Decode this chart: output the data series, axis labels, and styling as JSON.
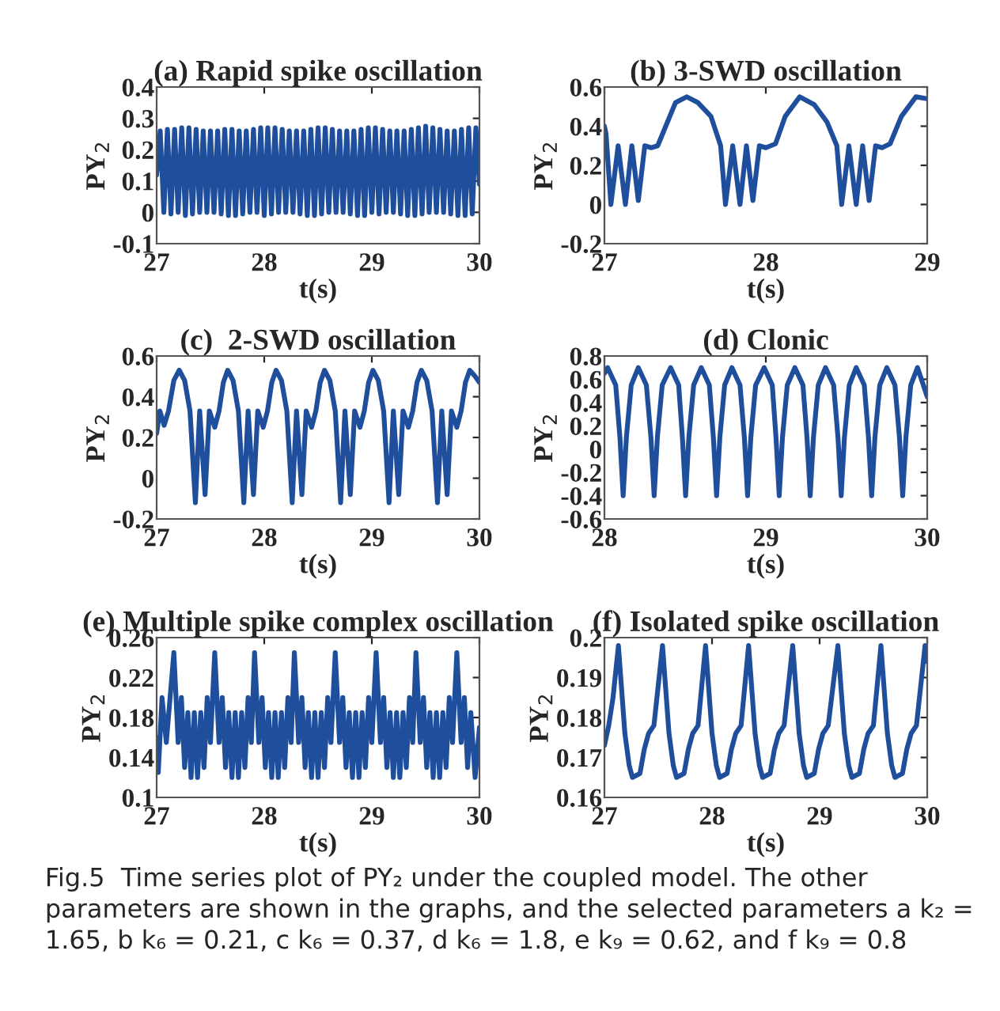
{
  "chart_data": [
    {
      "type": "line",
      "title": "(a) Rapid spike oscillation",
      "xlabel": "t(s)",
      "ylabel": "PY$_{2}$",
      "xlim": [
        27,
        30
      ],
      "ylim": [
        -0.1,
        0.4
      ],
      "xticks": [
        27,
        28,
        29,
        30
      ],
      "yticks": [
        -0.1,
        0,
        0.1,
        0.2,
        0.3,
        0.4
      ],
      "series": [
        {
          "color": "#1f4e9c",
          "x": [
            27.0,
            27.033,
            27.067,
            27.1,
            27.133,
            27.167,
            27.2,
            27.233,
            27.267,
            27.3,
            27.333,
            27.367,
            27.4,
            27.433,
            27.467,
            27.5,
            27.533,
            27.567,
            27.6,
            27.633,
            27.667,
            27.7,
            27.733,
            27.767,
            27.8,
            27.833,
            27.867,
            27.9,
            27.933,
            27.967,
            28.0,
            28.033,
            28.067,
            28.1,
            28.133,
            28.167,
            28.2,
            28.233,
            28.267,
            28.3,
            28.333,
            28.367,
            28.4,
            28.433,
            28.467,
            28.5,
            28.533,
            28.567,
            28.6,
            28.633,
            28.667,
            28.7,
            28.733,
            28.767,
            28.8,
            28.833,
            28.867,
            28.9,
            28.933,
            28.967,
            29.0,
            29.033,
            29.067,
            29.1,
            29.133,
            29.167,
            29.2,
            29.233,
            29.267,
            29.3,
            29.333,
            29.367,
            29.4,
            29.433,
            29.467,
            29.5,
            29.533,
            29.567,
            29.6,
            29.633,
            29.667,
            29.7,
            29.733,
            29.767,
            29.8,
            29.833,
            29.867,
            29.9,
            29.933,
            29.967,
            30.0
          ],
          "values": [
            0.12,
            0.26,
            0,
            0.265,
            -0.005,
            0.265,
            0,
            0.27,
            -0.01,
            0.27,
            -0.005,
            0.265,
            0,
            0.26,
            0,
            0.26,
            0,
            0.26,
            -0.005,
            0.265,
            -0.01,
            0.265,
            -0.01,
            0.26,
            -0.005,
            0.26,
            0,
            0.265,
            0,
            0.27,
            -0.01,
            0.27,
            -0.005,
            0.27,
            0,
            0.265,
            0,
            0.26,
            0,
            0.26,
            -0.005,
            0.26,
            -0.01,
            0.265,
            -0.01,
            0.27,
            -0.005,
            0.27,
            0,
            0.265,
            0,
            0.26,
            0,
            0.26,
            -0.005,
            0.26,
            -0.01,
            0.265,
            -0.01,
            0.27,
            0,
            0.27,
            -0.005,
            0.265,
            0,
            0.26,
            0,
            0.26,
            -0.005,
            0.26,
            -0.01,
            0.265,
            -0.01,
            0.27,
            -0.005,
            0.275,
            0,
            0.27,
            0,
            0.265,
            0,
            0.26,
            -0.005,
            0.26,
            -0.01,
            0.265,
            -0.01,
            0.27,
            -0.005,
            0.27,
            0.09
          ]
        }
      ]
    },
    {
      "type": "line",
      "title": "(b) 3-SWD oscillation",
      "xlabel": "t(s)",
      "ylabel": "PY$_{2}$",
      "xlim": [
        27,
        29
      ],
      "ylim": [
        -0.2,
        0.6
      ],
      "xticks": [
        27,
        28,
        29
      ],
      "yticks": [
        -0.2,
        0,
        0.2,
        0.4,
        0.6
      ],
      "series": [
        {
          "color": "#1f4e9c",
          "x": [
            27.0,
            27.01,
            27.04,
            27.085,
            27.13,
            27.17,
            27.21,
            27.25,
            27.29,
            27.33,
            27.38,
            27.44,
            27.51,
            27.58,
            27.66,
            27.72,
            27.75,
            27.795,
            27.84,
            27.88,
            27.92,
            27.96,
            28.0,
            28.06,
            28.12,
            28.21,
            28.3,
            28.38,
            28.44,
            28.47,
            28.515,
            28.56,
            28.6,
            28.64,
            28.68,
            28.72,
            28.77,
            28.84,
            28.93,
            29.0
          ],
          "values": [
            0.4,
            0.36,
            0.0,
            0.3,
            0.0,
            0.3,
            0.02,
            0.3,
            0.29,
            0.3,
            0.4,
            0.52,
            0.55,
            0.52,
            0.45,
            0.3,
            0.0,
            0.3,
            0.0,
            0.3,
            0.02,
            0.3,
            0.29,
            0.31,
            0.45,
            0.55,
            0.51,
            0.42,
            0.3,
            0.0,
            0.3,
            0.0,
            0.3,
            0.02,
            0.3,
            0.29,
            0.31,
            0.45,
            0.55,
            0.54
          ]
        }
      ]
    },
    {
      "type": "line",
      "title": "(c)  2-SWD oscillation",
      "xlabel": "t(s)",
      "ylabel": "PY$_{2}$",
      "xlim": [
        27,
        30
      ],
      "ylim": [
        -0.2,
        0.6
      ],
      "xticks": [
        27,
        28,
        29,
        30
      ],
      "yticks": [
        -0.2,
        0,
        0.2,
        0.4,
        0.6
      ],
      "series": [
        {
          "color": "#1f4e9c",
          "x": [
            27.0,
            27.03,
            27.07,
            27.11,
            27.16,
            27.21,
            27.26,
            27.31,
            27.36,
            27.4,
            27.45,
            27.49,
            27.54,
            27.58,
            27.62,
            27.66,
            27.71,
            27.76,
            27.81,
            27.85,
            27.9,
            27.94,
            27.99,
            28.03,
            28.07,
            28.11,
            28.16,
            28.21,
            28.26,
            28.3,
            28.35,
            28.39,
            28.44,
            28.48,
            28.52,
            28.56,
            28.61,
            28.66,
            28.71,
            28.75,
            28.8,
            28.84,
            28.89,
            28.93,
            28.97,
            29.01,
            29.06,
            29.11,
            29.16,
            29.2,
            29.25,
            29.29,
            29.34,
            29.38,
            29.42,
            29.46,
            29.51,
            29.56,
            29.61,
            29.65,
            29.7,
            29.74,
            29.79,
            29.83,
            29.87,
            29.91,
            29.96,
            30.0
          ],
          "values": [
            0.22,
            0.33,
            0.26,
            0.33,
            0.48,
            0.53,
            0.48,
            0.33,
            -0.12,
            0.33,
            -0.08,
            0.33,
            0.25,
            0.33,
            0.47,
            0.53,
            0.48,
            0.33,
            -0.12,
            0.33,
            -0.08,
            0.33,
            0.25,
            0.33,
            0.47,
            0.53,
            0.48,
            0.33,
            -0.12,
            0.33,
            -0.08,
            0.33,
            0.25,
            0.33,
            0.47,
            0.53,
            0.48,
            0.33,
            -0.12,
            0.33,
            -0.08,
            0.33,
            0.25,
            0.33,
            0.47,
            0.53,
            0.48,
            0.33,
            -0.12,
            0.33,
            -0.08,
            0.33,
            0.25,
            0.33,
            0.47,
            0.53,
            0.48,
            0.33,
            -0.12,
            0.33,
            -0.08,
            0.33,
            0.25,
            0.33,
            0.47,
            0.53,
            0.5,
            0.47
          ]
        }
      ]
    },
    {
      "type": "line",
      "title": "(d) Clonic",
      "xlabel": "t(s)",
      "ylabel": "PY$_{2}$",
      "xlim": [
        28,
        30
      ],
      "ylim": [
        -0.6,
        0.8
      ],
      "xticks": [
        28,
        29,
        30
      ],
      "yticks": [
        -0.6,
        -0.4,
        -0.2,
        0,
        0.2,
        0.4,
        0.6,
        0.8
      ],
      "series": [
        {
          "color": "#1f4e9c",
          "x": [
            28.0,
            28.02,
            28.07,
            28.096,
            28.116,
            28.136,
            28.166,
            28.21,
            28.26,
            28.288,
            28.308,
            28.328,
            28.358,
            28.41,
            28.46,
            28.483,
            28.503,
            28.523,
            28.553,
            28.6,
            28.65,
            28.675,
            28.695,
            28.715,
            28.745,
            28.79,
            28.84,
            28.867,
            28.887,
            28.907,
            28.937,
            28.99,
            29.04,
            29.063,
            29.083,
            29.103,
            29.133,
            29.18,
            29.23,
            29.255,
            29.275,
            29.295,
            29.325,
            29.37,
            29.42,
            29.447,
            29.467,
            29.487,
            29.517,
            29.56,
            29.61,
            29.636,
            29.656,
            29.676,
            29.706,
            29.75,
            29.8,
            29.828,
            29.848,
            29.868,
            29.898,
            29.94,
            30.0
          ],
          "values": [
            0.65,
            0.7,
            0.55,
            0.1,
            -0.4,
            0.1,
            0.55,
            0.7,
            0.55,
            0.1,
            -0.4,
            0.1,
            0.55,
            0.7,
            0.55,
            0.1,
            -0.4,
            0.1,
            0.55,
            0.7,
            0.55,
            0.1,
            -0.4,
            0.1,
            0.55,
            0.7,
            0.55,
            0.1,
            -0.4,
            0.1,
            0.55,
            0.7,
            0.55,
            0.1,
            -0.4,
            0.1,
            0.55,
            0.7,
            0.55,
            0.1,
            -0.4,
            0.1,
            0.55,
            0.7,
            0.55,
            0.1,
            -0.4,
            0.1,
            0.55,
            0.7,
            0.55,
            0.1,
            -0.4,
            0.1,
            0.55,
            0.7,
            0.55,
            0.1,
            -0.4,
            0.1,
            0.55,
            0.7,
            0.45
          ]
        }
      ]
    },
    {
      "type": "line",
      "title": "(e) Multiple spike complex oscillation",
      "xlabel": "t(s)",
      "ylabel": "PY$_{2}$",
      "xlim": [
        27,
        30
      ],
      "ylim": [
        0.1,
        0.26
      ],
      "xticks": [
        27,
        28,
        29,
        30
      ],
      "yticks": [
        0.1,
        0.14,
        0.18,
        0.22,
        0.26
      ],
      "series": [
        {
          "color": "#1f4e9c",
          "x": [
            27.0,
            27.015,
            27.05,
            27.09,
            27.16,
            27.2,
            27.23,
            27.26,
            27.29,
            27.32,
            27.35,
            27.38,
            27.41,
            27.44,
            27.47,
            27.5,
            27.54,
            27.58,
            27.61,
            27.64,
            27.67,
            27.7,
            27.73,
            27.76,
            27.79,
            27.82,
            27.85,
            27.88,
            27.91,
            27.95,
            27.98,
            28.01,
            28.04,
            28.07,
            28.1,
            28.13,
            28.16,
            28.19,
            28.22,
            28.25,
            28.28,
            28.32,
            28.35,
            28.38,
            28.41,
            28.44,
            28.47,
            28.5,
            28.53,
            28.56,
            28.59,
            28.62,
            28.66,
            28.7,
            28.73,
            28.76,
            28.79,
            28.82,
            28.85,
            28.88,
            28.91,
            28.94,
            28.97,
            29.0,
            29.04,
            29.08,
            29.11,
            29.14,
            29.17,
            29.2,
            29.23,
            29.26,
            29.29,
            29.32,
            29.35,
            29.38,
            29.41,
            29.45,
            29.48,
            29.51,
            29.54,
            29.57,
            29.6,
            29.63,
            29.66,
            29.69,
            29.72,
            29.75,
            29.79,
            29.83,
            29.86,
            29.89,
            29.92,
            29.96,
            30.0
          ],
          "values": [
            0.16,
            0.125,
            0.2,
            0.155,
            0.245,
            0.155,
            0.2,
            0.13,
            0.185,
            0.12,
            0.185,
            0.12,
            0.185,
            0.13,
            0.2,
            0.155,
            0.245,
            0.155,
            0.2,
            0.13,
            0.185,
            0.12,
            0.185,
            0.12,
            0.185,
            0.13,
            0.2,
            0.155,
            0.245,
            0.155,
            0.2,
            0.13,
            0.185,
            0.12,
            0.185,
            0.12,
            0.185,
            0.13,
            0.2,
            0.155,
            0.245,
            0.155,
            0.2,
            0.13,
            0.185,
            0.12,
            0.185,
            0.12,
            0.185,
            0.13,
            0.2,
            0.155,
            0.245,
            0.155,
            0.2,
            0.13,
            0.185,
            0.12,
            0.185,
            0.12,
            0.185,
            0.13,
            0.2,
            0.155,
            0.245,
            0.155,
            0.2,
            0.13,
            0.185,
            0.12,
            0.185,
            0.12,
            0.185,
            0.13,
            0.2,
            0.155,
            0.245,
            0.155,
            0.2,
            0.13,
            0.185,
            0.12,
            0.185,
            0.12,
            0.185,
            0.13,
            0.2,
            0.155,
            0.245,
            0.155,
            0.2,
            0.13,
            0.185,
            0.12,
            0.17
          ]
        }
      ]
    },
    {
      "type": "line",
      "title": "(f) Isolated spike oscillation",
      "xlabel": "t(s)",
      "ylabel": "PY$_{2}$",
      "xlim": [
        27,
        30
      ],
      "ylim": [
        0.16,
        0.2
      ],
      "xticks": [
        27,
        28,
        29,
        30
      ],
      "yticks": [
        0.16,
        0.17,
        0.18,
        0.19,
        0.2
      ],
      "annotations": [
        "Fig.5  Time series plot of PY₂ under the coupled model. The other parameters are shown in the graphs, and the selected parameters a k₂ = 1.65, b k₆ = 0.21, c k₆ = 0.37, d k₆ = 1.8, e k₉ = 0.62, and f k₉ = 0.8"
      ],
      "series": [
        {
          "color": "#1f4e9c",
          "x": [
            27.0,
            27.04,
            27.08,
            27.13,
            27.19,
            27.23,
            27.26,
            27.33,
            27.37,
            27.41,
            27.46,
            27.54,
            27.6,
            27.64,
            27.67,
            27.74,
            27.78,
            27.82,
            27.87,
            27.94,
            28.0,
            28.04,
            28.07,
            28.14,
            28.18,
            28.22,
            28.27,
            28.34,
            28.4,
            28.44,
            28.47,
            28.54,
            28.58,
            28.62,
            28.67,
            28.75,
            28.81,
            28.85,
            28.88,
            28.95,
            28.99,
            29.03,
            29.08,
            29.17,
            29.23,
            29.27,
            29.3,
            29.37,
            29.41,
            29.45,
            29.5,
            29.57,
            29.63,
            29.67,
            29.7,
            29.77,
            29.81,
            29.85,
            29.9,
            29.98,
            30.0
          ],
          "values": [
            0.173,
            0.178,
            0.185,
            0.198,
            0.176,
            0.168,
            0.165,
            0.166,
            0.172,
            0.176,
            0.178,
            0.198,
            0.176,
            0.168,
            0.165,
            0.166,
            0.172,
            0.176,
            0.178,
            0.198,
            0.176,
            0.168,
            0.165,
            0.166,
            0.172,
            0.176,
            0.178,
            0.198,
            0.176,
            0.168,
            0.165,
            0.166,
            0.172,
            0.176,
            0.178,
            0.198,
            0.176,
            0.168,
            0.165,
            0.166,
            0.172,
            0.176,
            0.178,
            0.198,
            0.176,
            0.168,
            0.165,
            0.166,
            0.172,
            0.176,
            0.178,
            0.198,
            0.176,
            0.168,
            0.165,
            0.166,
            0.172,
            0.176,
            0.178,
            0.198,
            0.194
          ]
        }
      ]
    }
  ]
}
